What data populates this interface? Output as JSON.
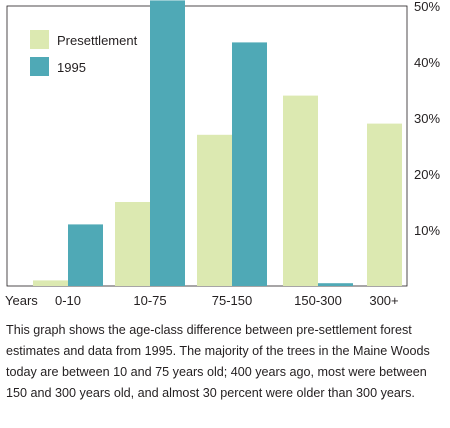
{
  "chart_data": {
    "type": "bar",
    "x_axis_label": "Years",
    "categories": [
      "0-10",
      "10-75",
      "75-150",
      "150-300",
      "300+"
    ],
    "series": [
      {
        "name": "Presettlement",
        "color": "#dce9b1",
        "values": [
          1,
          15,
          27,
          34,
          29
        ]
      },
      {
        "name": "1995",
        "color": "#4fa9b6",
        "values": [
          11,
          51,
          43.5,
          0.5,
          0
        ]
      }
    ],
    "y_ticks": [
      "10%",
      "20%",
      "30%",
      "40%",
      "50%"
    ],
    "ylim": [
      0,
      50
    ],
    "legend_position": "top-left",
    "grid": false
  },
  "caption": "This graph shows the age-class difference between pre-settlement forest estimates and data from 1995. The majority of the trees in the Maine Woods today are between 10 and 75 years old; 400 years ago, most were between 150 and 300 years old, and almost 30 percent were older than 300 years."
}
